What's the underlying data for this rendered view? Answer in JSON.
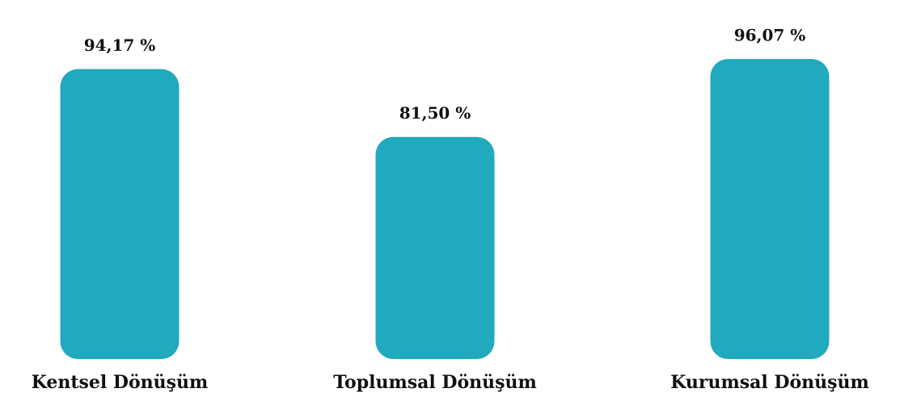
{
  "chart_data": {
    "type": "bar",
    "categories": [
      "Kentsel Dönüşüm",
      "Toplumsal Dönüşüm",
      "Kurumsal Dönüşüm"
    ],
    "values": [
      94.17,
      81.5,
      96.07
    ],
    "value_labels": [
      "94,17 %",
      "81,50 %",
      "96,07 %"
    ],
    "color": "#21a9bd",
    "ylim": [
      40,
      100
    ]
  }
}
